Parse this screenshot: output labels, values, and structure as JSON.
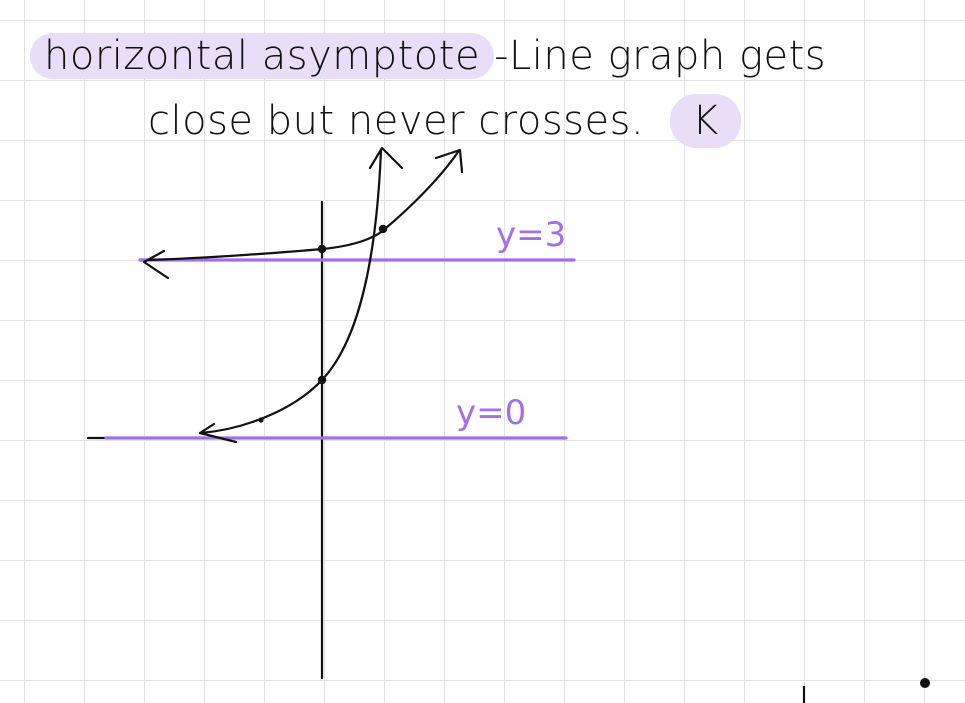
{
  "note": {
    "term": "horizontal asymptote",
    "separator": "-",
    "definition_part1": "Line graph gets",
    "definition_part2": "close but never crosses.",
    "initial": "K"
  },
  "asymptotes": [
    {
      "label": "y=3"
    },
    {
      "label": "y=0"
    }
  ],
  "colors": {
    "highlight": "#e9ddf8",
    "asymptote_line": "#a36ee6",
    "asymptote_text": "#a36ee6",
    "ink": "#111111",
    "grid": "#e2e2e2"
  }
}
